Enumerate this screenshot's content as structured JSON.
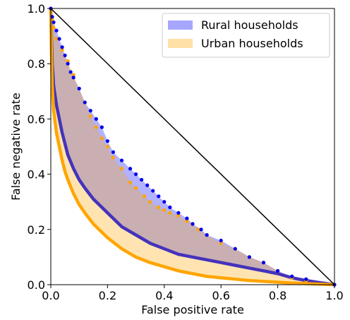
{
  "chart_data": {
    "type": "area",
    "xlabel": "False positive rate",
    "ylabel": "False negative rate",
    "xlim": [
      0.0,
      1.0
    ],
    "ylim": [
      0.0,
      1.0
    ],
    "xticks": [
      "0.0",
      "0.2",
      "0.4",
      "0.6",
      "0.8",
      "1.0"
    ],
    "yticks": [
      "0.0",
      "0.2",
      "0.4",
      "0.6",
      "0.8",
      "1.0"
    ],
    "grid": false,
    "legend_position": "top-right",
    "diagonal": {
      "x": [
        0,
        1
      ],
      "y": [
        1,
        0
      ],
      "color": "#000000"
    },
    "series": [
      {
        "name": "Rural households",
        "fill_color": "#0000ff",
        "fill_alpha": 0.3,
        "upper": {
          "color": "#0000ee",
          "x": [
            0.0,
            0.005,
            0.01,
            0.02,
            0.03,
            0.04,
            0.05,
            0.06,
            0.07,
            0.08,
            0.1,
            0.12,
            0.14,
            0.16,
            0.18,
            0.2,
            0.22,
            0.25,
            0.28,
            0.3,
            0.32,
            0.34,
            0.36,
            0.38,
            0.4,
            0.42,
            0.45,
            0.48,
            0.5,
            0.53,
            0.55,
            0.6,
            0.65,
            0.7,
            0.75,
            0.8,
            0.85,
            0.9,
            1.0
          ],
          "y": [
            1.0,
            0.97,
            0.95,
            0.92,
            0.89,
            0.86,
            0.83,
            0.8,
            0.77,
            0.75,
            0.71,
            0.66,
            0.63,
            0.6,
            0.57,
            0.52,
            0.48,
            0.45,
            0.42,
            0.4,
            0.38,
            0.36,
            0.34,
            0.32,
            0.3,
            0.28,
            0.26,
            0.24,
            0.22,
            0.2,
            0.18,
            0.16,
            0.13,
            0.1,
            0.08,
            0.05,
            0.03,
            0.02,
            0.0
          ]
        },
        "lower": {
          "color": "#4433bb",
          "x": [
            0.0,
            0.002,
            0.005,
            0.01,
            0.02,
            0.03,
            0.04,
            0.05,
            0.06,
            0.08,
            0.1,
            0.12,
            0.15,
            0.18,
            0.2,
            0.25,
            0.3,
            0.35,
            0.4,
            0.45,
            0.5,
            0.55,
            0.6,
            0.65,
            0.7,
            0.75,
            0.8,
            0.85,
            0.9,
            0.95,
            1.0
          ],
          "y": [
            1.0,
            0.9,
            0.8,
            0.72,
            0.65,
            0.6,
            0.55,
            0.51,
            0.47,
            0.42,
            0.38,
            0.35,
            0.31,
            0.28,
            0.26,
            0.21,
            0.18,
            0.15,
            0.13,
            0.11,
            0.1,
            0.09,
            0.08,
            0.07,
            0.06,
            0.05,
            0.04,
            0.025,
            0.015,
            0.007,
            0.0
          ]
        }
      },
      {
        "name": "Urban households",
        "fill_color": "#ffa500",
        "fill_alpha": 0.3,
        "upper": {
          "color": "#ffa500",
          "x": [
            0.0,
            0.005,
            0.01,
            0.02,
            0.04,
            0.06,
            0.08,
            0.1,
            0.12,
            0.14,
            0.16,
            0.18,
            0.2,
            0.22,
            0.25,
            0.28,
            0.3,
            0.33,
            0.35,
            0.38,
            0.4,
            0.42,
            0.45,
            0.48,
            0.5,
            0.52,
            0.55,
            0.6,
            0.65,
            0.7,
            0.75,
            0.8,
            0.85,
            0.9,
            1.0
          ],
          "y": [
            1.0,
            0.96,
            0.93,
            0.89,
            0.85,
            0.81,
            0.76,
            0.71,
            0.66,
            0.61,
            0.57,
            0.53,
            0.5,
            0.46,
            0.42,
            0.37,
            0.35,
            0.32,
            0.3,
            0.28,
            0.27,
            0.26,
            0.25,
            0.23,
            0.22,
            0.2,
            0.18,
            0.15,
            0.13,
            0.1,
            0.08,
            0.05,
            0.025,
            0.015,
            0.0
          ]
        },
        "lower": {
          "color": "#ffa500",
          "x": [
            0.0,
            0.002,
            0.005,
            0.01,
            0.02,
            0.03,
            0.04,
            0.05,
            0.06,
            0.08,
            0.1,
            0.12,
            0.15,
            0.18,
            0.2,
            0.25,
            0.3,
            0.35,
            0.4,
            0.45,
            0.5,
            0.55,
            0.6,
            0.65,
            0.7,
            0.75,
            0.8,
            0.85,
            0.9,
            0.95,
            1.0
          ],
          "y": [
            1.0,
            0.85,
            0.72,
            0.63,
            0.55,
            0.5,
            0.45,
            0.41,
            0.38,
            0.33,
            0.29,
            0.26,
            0.22,
            0.19,
            0.17,
            0.13,
            0.1,
            0.08,
            0.065,
            0.05,
            0.04,
            0.03,
            0.025,
            0.02,
            0.015,
            0.012,
            0.009,
            0.006,
            0.004,
            0.002,
            0.0
          ]
        }
      }
    ]
  }
}
